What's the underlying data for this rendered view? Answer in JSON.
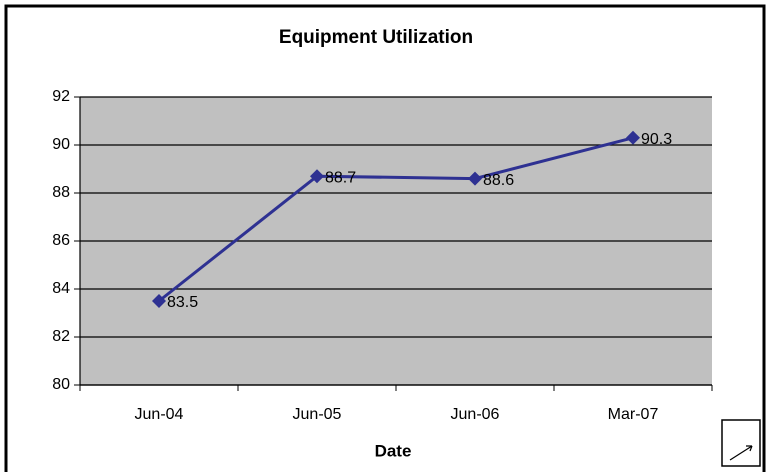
{
  "chart_data": {
    "type": "line",
    "title": "Equipment Utilization",
    "x_label": "Date",
    "categories": [
      "Jun-04",
      "Jun-05",
      "Jun-06",
      "Mar-07"
    ],
    "values": [
      83.5,
      88.7,
      88.6,
      90.3
    ],
    "color": "#2e3192",
    "ylim": [
      80,
      92
    ],
    "yticks": [
      80,
      82,
      84,
      86,
      88,
      90,
      92
    ],
    "grid": true,
    "plot_background": "#c0c0c0",
    "data_labels": true
  }
}
